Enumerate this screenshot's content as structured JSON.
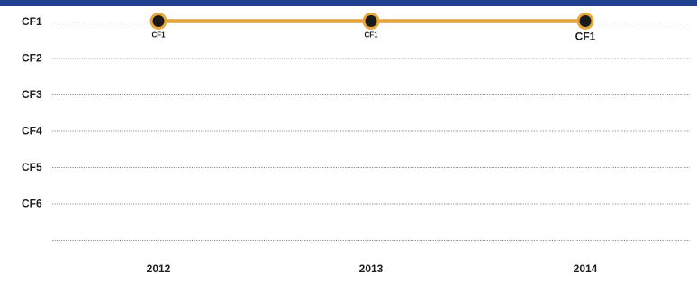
{
  "chart_data": {
    "type": "line",
    "title": "",
    "xlabel": "",
    "ylabel": "",
    "x": [
      "2012",
      "2013",
      "2014"
    ],
    "y_categories": [
      "CF1",
      "CF2",
      "CF3",
      "CF4",
      "CF5",
      "CF6"
    ],
    "series": [
      {
        "values": [
          "CF1",
          "CF1",
          "CF1"
        ],
        "data_labels": [
          "CF1",
          "CF1",
          "CF1"
        ],
        "color": "#e3a23a"
      }
    ],
    "grid": true,
    "legend": "none"
  },
  "colors": {
    "header_bar": "#1f3f8f",
    "line": "#e3a23a",
    "marker_center": "#1a1a1a",
    "gridline": "#8f8f8f"
  }
}
